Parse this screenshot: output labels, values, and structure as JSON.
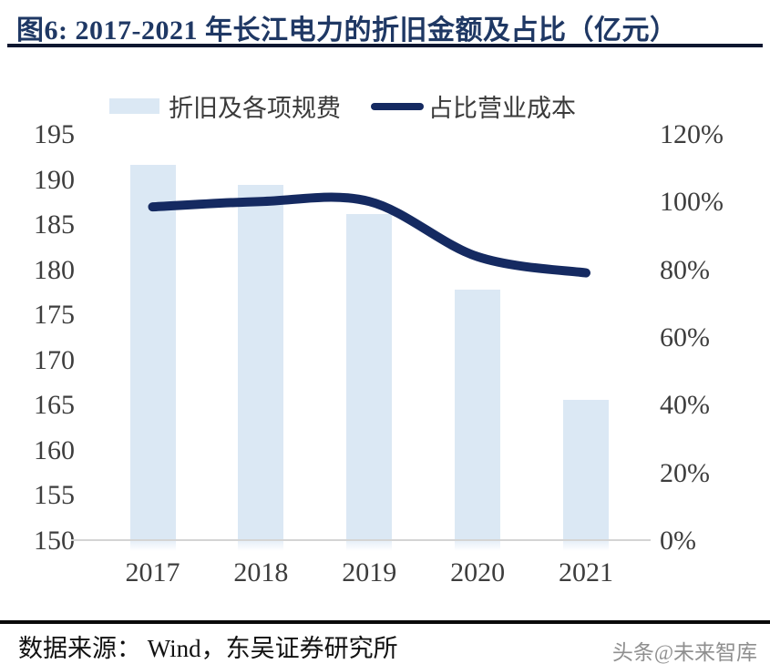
{
  "header": {
    "title": "图6:  2017-2021 年长江电力的折旧金额及占比（亿元）"
  },
  "legend": {
    "bar_label": "折旧及各项规费",
    "line_label": "占比营业成本"
  },
  "chart_data": {
    "type": "bar+line",
    "title": "2017-2021 年长江电力的折旧金额及占比（亿元）",
    "categories": [
      "2017",
      "2018",
      "2019",
      "2020",
      "2021"
    ],
    "series": [
      {
        "name": "折旧及各项规费",
        "type": "bar",
        "axis": "left",
        "unit": "亿元",
        "values": [
          191.7,
          189.5,
          186.2,
          177.8,
          165.6
        ]
      },
      {
        "name": "占比营业成本",
        "type": "line",
        "axis": "right",
        "unit": "%",
        "values": [
          98.7,
          100.3,
          100.3,
          84.0,
          79.2
        ]
      }
    ],
    "left_axis": {
      "min": 150,
      "max": 195,
      "step": 5,
      "tick_labels": [
        "195",
        "190",
        "185",
        "180",
        "175",
        "170",
        "165",
        "160",
        "155",
        "150"
      ]
    },
    "right_axis": {
      "min": 0,
      "max": 120,
      "step": 20,
      "tick_labels": [
        "120%",
        "100%",
        "80%",
        "60%",
        "40%",
        "20%",
        "0%"
      ]
    },
    "legend_position": "top",
    "grid": false,
    "smooth_line": true
  },
  "colors": {
    "bar_fill": "#dbe8f4",
    "line_stroke": "#152a61",
    "title_text": "#1f3864",
    "axis_text": "#3d3d3d"
  },
  "footer": {
    "source": "数据来源：  Wind，东吴证券研究所",
    "watermark": "头条@未来智库"
  }
}
